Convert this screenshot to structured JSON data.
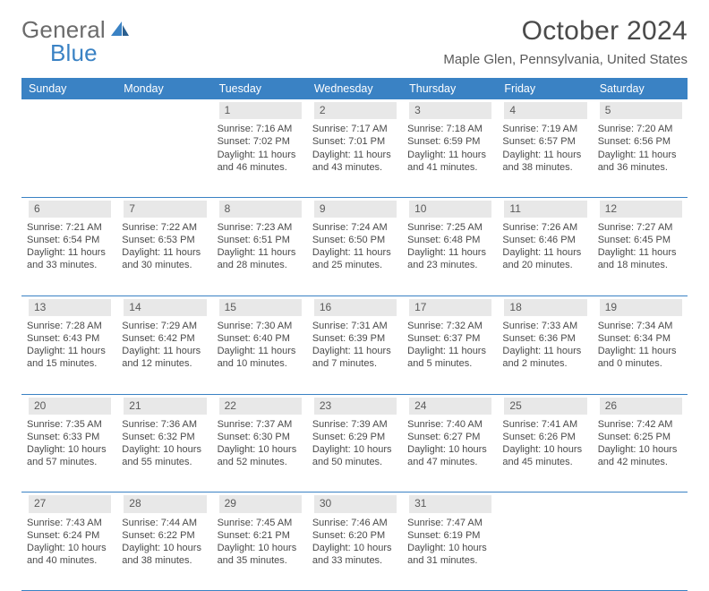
{
  "logo": {
    "text1": "General",
    "text2": "Blue"
  },
  "title": "October 2024",
  "location": "Maple Glen, Pennsylvania, United States",
  "colors": {
    "accent": "#3a82c4",
    "daynum_bg": "#e8e8e8",
    "text": "#4a4a4a"
  },
  "dayHeaders": [
    "Sunday",
    "Monday",
    "Tuesday",
    "Wednesday",
    "Thursday",
    "Friday",
    "Saturday"
  ],
  "weeks": [
    [
      null,
      null,
      {
        "n": "1",
        "sr": "Sunrise: 7:16 AM",
        "ss": "Sunset: 7:02 PM",
        "d1": "Daylight: 11 hours",
        "d2": "and 46 minutes."
      },
      {
        "n": "2",
        "sr": "Sunrise: 7:17 AM",
        "ss": "Sunset: 7:01 PM",
        "d1": "Daylight: 11 hours",
        "d2": "and 43 minutes."
      },
      {
        "n": "3",
        "sr": "Sunrise: 7:18 AM",
        "ss": "Sunset: 6:59 PM",
        "d1": "Daylight: 11 hours",
        "d2": "and 41 minutes."
      },
      {
        "n": "4",
        "sr": "Sunrise: 7:19 AM",
        "ss": "Sunset: 6:57 PM",
        "d1": "Daylight: 11 hours",
        "d2": "and 38 minutes."
      },
      {
        "n": "5",
        "sr": "Sunrise: 7:20 AM",
        "ss": "Sunset: 6:56 PM",
        "d1": "Daylight: 11 hours",
        "d2": "and 36 minutes."
      }
    ],
    [
      {
        "n": "6",
        "sr": "Sunrise: 7:21 AM",
        "ss": "Sunset: 6:54 PM",
        "d1": "Daylight: 11 hours",
        "d2": "and 33 minutes."
      },
      {
        "n": "7",
        "sr": "Sunrise: 7:22 AM",
        "ss": "Sunset: 6:53 PM",
        "d1": "Daylight: 11 hours",
        "d2": "and 30 minutes."
      },
      {
        "n": "8",
        "sr": "Sunrise: 7:23 AM",
        "ss": "Sunset: 6:51 PM",
        "d1": "Daylight: 11 hours",
        "d2": "and 28 minutes."
      },
      {
        "n": "9",
        "sr": "Sunrise: 7:24 AM",
        "ss": "Sunset: 6:50 PM",
        "d1": "Daylight: 11 hours",
        "d2": "and 25 minutes."
      },
      {
        "n": "10",
        "sr": "Sunrise: 7:25 AM",
        "ss": "Sunset: 6:48 PM",
        "d1": "Daylight: 11 hours",
        "d2": "and 23 minutes."
      },
      {
        "n": "11",
        "sr": "Sunrise: 7:26 AM",
        "ss": "Sunset: 6:46 PM",
        "d1": "Daylight: 11 hours",
        "d2": "and 20 minutes."
      },
      {
        "n": "12",
        "sr": "Sunrise: 7:27 AM",
        "ss": "Sunset: 6:45 PM",
        "d1": "Daylight: 11 hours",
        "d2": "and 18 minutes."
      }
    ],
    [
      {
        "n": "13",
        "sr": "Sunrise: 7:28 AM",
        "ss": "Sunset: 6:43 PM",
        "d1": "Daylight: 11 hours",
        "d2": "and 15 minutes."
      },
      {
        "n": "14",
        "sr": "Sunrise: 7:29 AM",
        "ss": "Sunset: 6:42 PM",
        "d1": "Daylight: 11 hours",
        "d2": "and 12 minutes."
      },
      {
        "n": "15",
        "sr": "Sunrise: 7:30 AM",
        "ss": "Sunset: 6:40 PM",
        "d1": "Daylight: 11 hours",
        "d2": "and 10 minutes."
      },
      {
        "n": "16",
        "sr": "Sunrise: 7:31 AM",
        "ss": "Sunset: 6:39 PM",
        "d1": "Daylight: 11 hours",
        "d2": "and 7 minutes."
      },
      {
        "n": "17",
        "sr": "Sunrise: 7:32 AM",
        "ss": "Sunset: 6:37 PM",
        "d1": "Daylight: 11 hours",
        "d2": "and 5 minutes."
      },
      {
        "n": "18",
        "sr": "Sunrise: 7:33 AM",
        "ss": "Sunset: 6:36 PM",
        "d1": "Daylight: 11 hours",
        "d2": "and 2 minutes."
      },
      {
        "n": "19",
        "sr": "Sunrise: 7:34 AM",
        "ss": "Sunset: 6:34 PM",
        "d1": "Daylight: 11 hours",
        "d2": "and 0 minutes."
      }
    ],
    [
      {
        "n": "20",
        "sr": "Sunrise: 7:35 AM",
        "ss": "Sunset: 6:33 PM",
        "d1": "Daylight: 10 hours",
        "d2": "and 57 minutes."
      },
      {
        "n": "21",
        "sr": "Sunrise: 7:36 AM",
        "ss": "Sunset: 6:32 PM",
        "d1": "Daylight: 10 hours",
        "d2": "and 55 minutes."
      },
      {
        "n": "22",
        "sr": "Sunrise: 7:37 AM",
        "ss": "Sunset: 6:30 PM",
        "d1": "Daylight: 10 hours",
        "d2": "and 52 minutes."
      },
      {
        "n": "23",
        "sr": "Sunrise: 7:39 AM",
        "ss": "Sunset: 6:29 PM",
        "d1": "Daylight: 10 hours",
        "d2": "and 50 minutes."
      },
      {
        "n": "24",
        "sr": "Sunrise: 7:40 AM",
        "ss": "Sunset: 6:27 PM",
        "d1": "Daylight: 10 hours",
        "d2": "and 47 minutes."
      },
      {
        "n": "25",
        "sr": "Sunrise: 7:41 AM",
        "ss": "Sunset: 6:26 PM",
        "d1": "Daylight: 10 hours",
        "d2": "and 45 minutes."
      },
      {
        "n": "26",
        "sr": "Sunrise: 7:42 AM",
        "ss": "Sunset: 6:25 PM",
        "d1": "Daylight: 10 hours",
        "d2": "and 42 minutes."
      }
    ],
    [
      {
        "n": "27",
        "sr": "Sunrise: 7:43 AM",
        "ss": "Sunset: 6:24 PM",
        "d1": "Daylight: 10 hours",
        "d2": "and 40 minutes."
      },
      {
        "n": "28",
        "sr": "Sunrise: 7:44 AM",
        "ss": "Sunset: 6:22 PM",
        "d1": "Daylight: 10 hours",
        "d2": "and 38 minutes."
      },
      {
        "n": "29",
        "sr": "Sunrise: 7:45 AM",
        "ss": "Sunset: 6:21 PM",
        "d1": "Daylight: 10 hours",
        "d2": "and 35 minutes."
      },
      {
        "n": "30",
        "sr": "Sunrise: 7:46 AM",
        "ss": "Sunset: 6:20 PM",
        "d1": "Daylight: 10 hours",
        "d2": "and 33 minutes."
      },
      {
        "n": "31",
        "sr": "Sunrise: 7:47 AM",
        "ss": "Sunset: 6:19 PM",
        "d1": "Daylight: 10 hours",
        "d2": "and 31 minutes."
      },
      null,
      null
    ]
  ]
}
